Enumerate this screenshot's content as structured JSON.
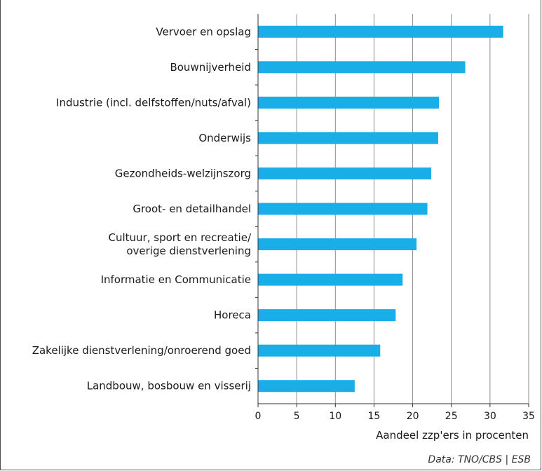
{
  "chart_data": {
    "type": "bar",
    "orientation": "horizontal",
    "title": "",
    "xlabel": "Aandeel zzp'ers in procenten",
    "ylabel": "",
    "xlim": [
      0,
      35
    ],
    "xticks": [
      0,
      5,
      10,
      15,
      20,
      25,
      30,
      35
    ],
    "grid": true,
    "categories": [
      [
        "Vervoer en opslag"
      ],
      [
        "Bouwnijverheid"
      ],
      [
        "Industrie (incl. delfstoffen/nuts/afval)"
      ],
      [
        "Onderwijs"
      ],
      [
        "Gezondheids-welzijnszorg"
      ],
      [
        "Groot- en detailhandel"
      ],
      [
        "Cultuur, sport en recreatie/",
        "overige dienstverlening"
      ],
      [
        "Informatie en Communicatie"
      ],
      [
        "Horeca"
      ],
      [
        "Zakelijke dienstverlening/onroerend goed"
      ],
      [
        "Landbouw, bosbouw en visserij"
      ]
    ],
    "values": [
      31.7,
      26.8,
      23.4,
      23.3,
      22.4,
      21.9,
      20.5,
      18.7,
      17.8,
      15.8,
      12.5
    ],
    "bar_color": "#1aaee8"
  },
  "source": "Data: TNO/CBS | ESB",
  "colors": {
    "bar": "#1aaee8",
    "grid": "#8c8c8c",
    "axis": "#333333",
    "frame": "#4d4d4d"
  }
}
